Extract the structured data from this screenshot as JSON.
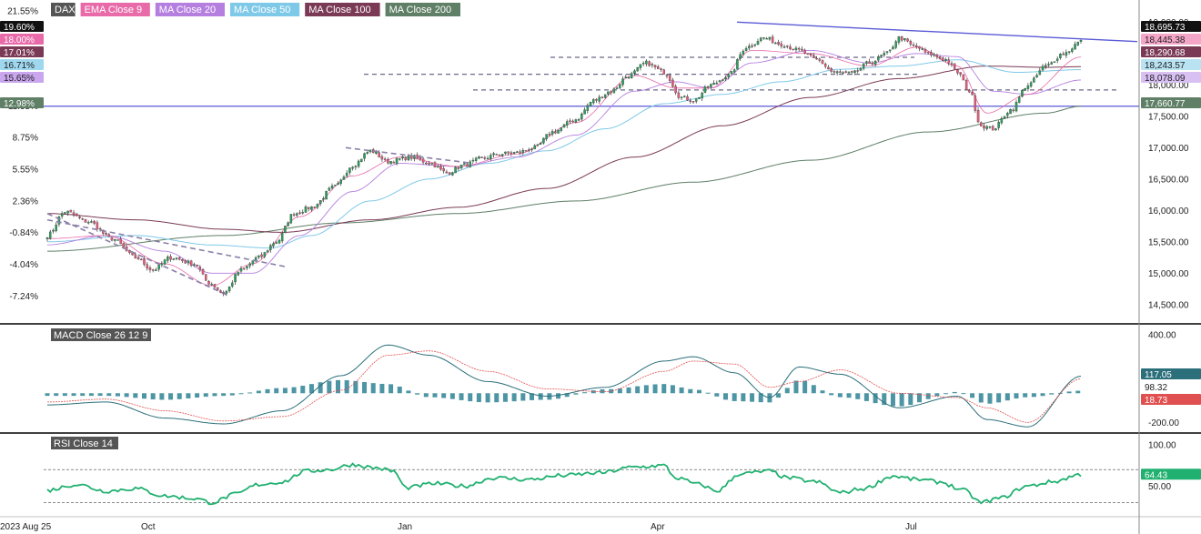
{
  "legend": [
    {
      "label": "DAX",
      "color": "#555555"
    },
    {
      "label": "EMA Close 9",
      "color": "#e86aa8"
    },
    {
      "label": "MA Close 20",
      "color": "#b57fe0"
    },
    {
      "label": "MA Close 50",
      "color": "#7fc9e8"
    },
    {
      "label": "MA Close 100",
      "color": "#7a3a55"
    },
    {
      "label": "MA Close 200",
      "color": "#5f7f66"
    }
  ],
  "colors": {
    "candle_up": "#2e9e5b",
    "candle_down": "#e45c7a",
    "ema9": "#e86aa8",
    "ma20": "#b57fe0",
    "ma50": "#7fc9e8",
    "ma100": "#7a3a55",
    "ma200": "#5f7f66",
    "trend": "#5a5ad6",
    "channel": "#8a7fa8",
    "macd_line": "#2b6f7a",
    "signal_line": "#e05050",
    "histogram": "#3a8a9a",
    "rsi": "#20b070"
  },
  "chart_data": [
    {
      "type": "candlestick",
      "title": "DAX",
      "y_right_ticks": [
        "19,000.00",
        "18,000.00",
        "17,500.00",
        "17,000.00",
        "16,500.00",
        "16,000.00",
        "15,500.00",
        "15,000.00",
        "14,500.00"
      ],
      "y_left_ticks": [
        "21.55%",
        "11.95%",
        "8.75%",
        "5.55%",
        "2.36%",
        "-0.84%",
        "-4.04%",
        "-7.24%"
      ],
      "ylim": [
        14250,
        19150
      ],
      "x_labels": [
        "2023 Aug 25",
        "Oct",
        "Jan",
        "Apr",
        "Jul"
      ],
      "left_tags": [
        {
          "text": "19.60%",
          "bg": "#111111",
          "fg": "#ffffff"
        },
        {
          "text": "18.00%",
          "bg": "#e86aa8",
          "fg": "#ffffff"
        },
        {
          "text": "17.01%",
          "bg": "#7a3a55",
          "fg": "#ffffff"
        },
        {
          "text": "16.71%",
          "bg": "#9fd8ee",
          "fg": "#222222"
        },
        {
          "text": "15.65%",
          "bg": "#c9a6ee",
          "fg": "#222222"
        },
        {
          "text": "12.98%",
          "bg": "#5f7f66",
          "fg": "#ffffff"
        }
      ],
      "right_tags": [
        {
          "text": "18,695.73",
          "bg": "#111111",
          "fg": "#ffffff"
        },
        {
          "text": "18,445.38",
          "bg": "#f3a6c8",
          "fg": "#222222"
        },
        {
          "text": "18,290.68",
          "bg": "#7a3a55",
          "fg": "#ffffff"
        },
        {
          "text": "18,243.57",
          "bg": "#b9e3f3",
          "fg": "#222222"
        },
        {
          "text": "18,078.09",
          "bg": "#d8c0f3",
          "fg": "#222222"
        },
        {
          "text": "17,660.77",
          "bg": "#5f7f66",
          "fg": "#ffffff"
        }
      ],
      "horizontal_level": 17660.77,
      "ohlc_anchors": [
        [
          0,
          15600
        ],
        [
          6,
          15980
        ],
        [
          14,
          15820
        ],
        [
          22,
          15550
        ],
        [
          30,
          15250
        ],
        [
          36,
          15050
        ],
        [
          42,
          15250
        ],
        [
          50,
          15150
        ],
        [
          55,
          14850
        ],
        [
          60,
          14680
        ],
        [
          66,
          15050
        ],
        [
          72,
          15250
        ],
        [
          78,
          15500
        ],
        [
          84,
          15950
        ],
        [
          90,
          16050
        ],
        [
          98,
          16380
        ],
        [
          104,
          16720
        ],
        [
          110,
          16950
        ],
        [
          116,
          16780
        ],
        [
          124,
          16850
        ],
        [
          130,
          16760
        ],
        [
          136,
          16600
        ],
        [
          142,
          16720
        ],
        [
          148,
          16830
        ],
        [
          154,
          16900
        ],
        [
          160,
          16920
        ],
        [
          166,
          17000
        ],
        [
          172,
          17250
        ],
        [
          180,
          17450
        ],
        [
          186,
          17750
        ],
        [
          192,
          17900
        ],
        [
          198,
          18150
        ],
        [
          204,
          18350
        ],
        [
          210,
          18200
        ],
        [
          216,
          17800
        ],
        [
          220,
          17750
        ],
        [
          226,
          18000
        ],
        [
          232,
          18150
        ],
        [
          238,
          18600
        ],
        [
          244,
          18750
        ],
        [
          250,
          18650
        ],
        [
          256,
          18550
        ],
        [
          262,
          18400
        ],
        [
          268,
          18200
        ],
        [
          274,
          18180
        ],
        [
          280,
          18350
        ],
        [
          286,
          18500
        ],
        [
          290,
          18750
        ],
        [
          296,
          18600
        ],
        [
          300,
          18500
        ],
        [
          306,
          18400
        ],
        [
          310,
          18200
        ],
        [
          314,
          17900
        ],
        [
          318,
          17350
        ],
        [
          322,
          17300
        ],
        [
          328,
          17600
        ],
        [
          334,
          18000
        ],
        [
          340,
          18300
        ],
        [
          346,
          18500
        ],
        [
          352,
          18690
        ]
      ],
      "ema9_anchors": [
        [
          0,
          15550
        ],
        [
          20,
          15600
        ],
        [
          40,
          15150
        ],
        [
          56,
          14800
        ],
        [
          70,
          15150
        ],
        [
          86,
          15900
        ],
        [
          104,
          16550
        ],
        [
          120,
          16850
        ],
        [
          140,
          16700
        ],
        [
          160,
          16900
        ],
        [
          180,
          17400
        ],
        [
          200,
          18150
        ],
        [
          214,
          17950
        ],
        [
          226,
          17950
        ],
        [
          240,
          18550
        ],
        [
          260,
          18500
        ],
        [
          280,
          18300
        ],
        [
          296,
          18600
        ],
        [
          310,
          18300
        ],
        [
          320,
          17550
        ],
        [
          334,
          17850
        ],
        [
          352,
          18445
        ]
      ],
      "ma20_anchors": [
        [
          0,
          15450
        ],
        [
          20,
          15600
        ],
        [
          40,
          15350
        ],
        [
          56,
          15000
        ],
        [
          70,
          15000
        ],
        [
          86,
          15600
        ],
        [
          104,
          16300
        ],
        [
          120,
          16750
        ],
        [
          140,
          16700
        ],
        [
          160,
          16850
        ],
        [
          180,
          17200
        ],
        [
          200,
          17900
        ],
        [
          214,
          18050
        ],
        [
          226,
          17950
        ],
        [
          240,
          18350
        ],
        [
          260,
          18550
        ],
        [
          280,
          18350
        ],
        [
          296,
          18500
        ],
        [
          310,
          18450
        ],
        [
          322,
          17900
        ],
        [
          334,
          17850
        ],
        [
          352,
          18078
        ]
      ],
      "ma50_anchors": [
        [
          0,
          15500
        ],
        [
          30,
          15600
        ],
        [
          56,
          15450
        ],
        [
          76,
          15400
        ],
        [
          90,
          15600
        ],
        [
          110,
          16150
        ],
        [
          130,
          16500
        ],
        [
          150,
          16750
        ],
        [
          170,
          16950
        ],
        [
          190,
          17300
        ],
        [
          210,
          17700
        ],
        [
          230,
          17850
        ],
        [
          250,
          18050
        ],
        [
          270,
          18250
        ],
        [
          290,
          18300
        ],
        [
          310,
          18400
        ],
        [
          330,
          18200
        ],
        [
          352,
          18243
        ]
      ],
      "ma100_anchors": [
        [
          0,
          15950
        ],
        [
          30,
          15850
        ],
        [
          60,
          15700
        ],
        [
          80,
          15650
        ],
        [
          110,
          15850
        ],
        [
          140,
          16050
        ],
        [
          170,
          16350
        ],
        [
          200,
          16850
        ],
        [
          230,
          17350
        ],
        [
          260,
          17800
        ],
        [
          290,
          18100
        ],
        [
          320,
          18300
        ],
        [
          340,
          18280
        ],
        [
          352,
          18290
        ]
      ],
      "ma200_anchors": [
        [
          0,
          15350
        ],
        [
          60,
          15600
        ],
        [
          100,
          15800
        ],
        [
          140,
          15950
        ],
        [
          180,
          16150
        ],
        [
          220,
          16450
        ],
        [
          260,
          16800
        ],
        [
          300,
          17250
        ],
        [
          340,
          17550
        ],
        [
          352,
          17660
        ]
      ]
    },
    {
      "type": "macd",
      "title": "MACD Close 26 12 9",
      "y_right_ticks": [
        "400.00",
        "-200.00"
      ],
      "ylim": [
        -260,
        450
      ],
      "value_tags": [
        {
          "text": "117.05",
          "bg": "#2b6f7a",
          "fg": "#ffffff"
        },
        {
          "text": "98.32",
          "bg": "#ffffff",
          "fg": "#222222"
        },
        {
          "text": "18.73",
          "bg": "#e05050",
          "fg": "#ffffff"
        }
      ],
      "macd_anchors": [
        [
          0,
          -80
        ],
        [
          20,
          -60
        ],
        [
          40,
          -170
        ],
        [
          60,
          -210
        ],
        [
          80,
          -120
        ],
        [
          100,
          120
        ],
        [
          116,
          330
        ],
        [
          130,
          260
        ],
        [
          150,
          80
        ],
        [
          170,
          -20
        ],
        [
          190,
          40
        ],
        [
          210,
          220
        ],
        [
          220,
          250
        ],
        [
          234,
          140
        ],
        [
          246,
          -30
        ],
        [
          256,
          180
        ],
        [
          270,
          130
        ],
        [
          290,
          -100
        ],
        [
          310,
          -20
        ],
        [
          320,
          -180
        ],
        [
          334,
          -230
        ],
        [
          352,
          117
        ]
      ],
      "signal_anchors": [
        [
          0,
          -60
        ],
        [
          20,
          -40
        ],
        [
          40,
          -120
        ],
        [
          60,
          -190
        ],
        [
          80,
          -160
        ],
        [
          100,
          20
        ],
        [
          116,
          260
        ],
        [
          130,
          290
        ],
        [
          150,
          150
        ],
        [
          170,
          30
        ],
        [
          190,
          10
        ],
        [
          210,
          150
        ],
        [
          220,
          220
        ],
        [
          234,
          200
        ],
        [
          246,
          40
        ],
        [
          256,
          80
        ],
        [
          270,
          160
        ],
        [
          290,
          0
        ],
        [
          310,
          -30
        ],
        [
          320,
          -100
        ],
        [
          334,
          -200
        ],
        [
          352,
          98
        ]
      ]
    },
    {
      "type": "rsi",
      "title": "RSI Close 14",
      "y_right_ticks": [
        "100.00",
        "50.00"
      ],
      "ylim": [
        15,
        110
      ],
      "value_tag": {
        "text": "64.43",
        "bg": "#20b070",
        "fg": "#ffffff"
      },
      "levels": [
        70,
        30
      ],
      "rsi_anchors": [
        [
          0,
          45
        ],
        [
          10,
          52
        ],
        [
          20,
          44
        ],
        [
          30,
          47
        ],
        [
          40,
          38
        ],
        [
          50,
          35
        ],
        [
          56,
          30
        ],
        [
          64,
          40
        ],
        [
          72,
          52
        ],
        [
          80,
          55
        ],
        [
          88,
          68
        ],
        [
          96,
          70
        ],
        [
          104,
          76
        ],
        [
          112,
          72
        ],
        [
          118,
          68
        ],
        [
          122,
          48
        ],
        [
          132,
          53
        ],
        [
          142,
          50
        ],
        [
          152,
          60
        ],
        [
          164,
          58
        ],
        [
          176,
          63
        ],
        [
          188,
          66
        ],
        [
          200,
          73
        ],
        [
          210,
          75
        ],
        [
          214,
          60
        ],
        [
          222,
          52
        ],
        [
          228,
          44
        ],
        [
          236,
          65
        ],
        [
          246,
          68
        ],
        [
          252,
          60
        ],
        [
          262,
          55
        ],
        [
          270,
          42
        ],
        [
          278,
          47
        ],
        [
          288,
          62
        ],
        [
          296,
          58
        ],
        [
          304,
          55
        ],
        [
          312,
          45
        ],
        [
          318,
          30
        ],
        [
          324,
          35
        ],
        [
          334,
          50
        ],
        [
          342,
          55
        ],
        [
          352,
          64
        ]
      ]
    }
  ]
}
